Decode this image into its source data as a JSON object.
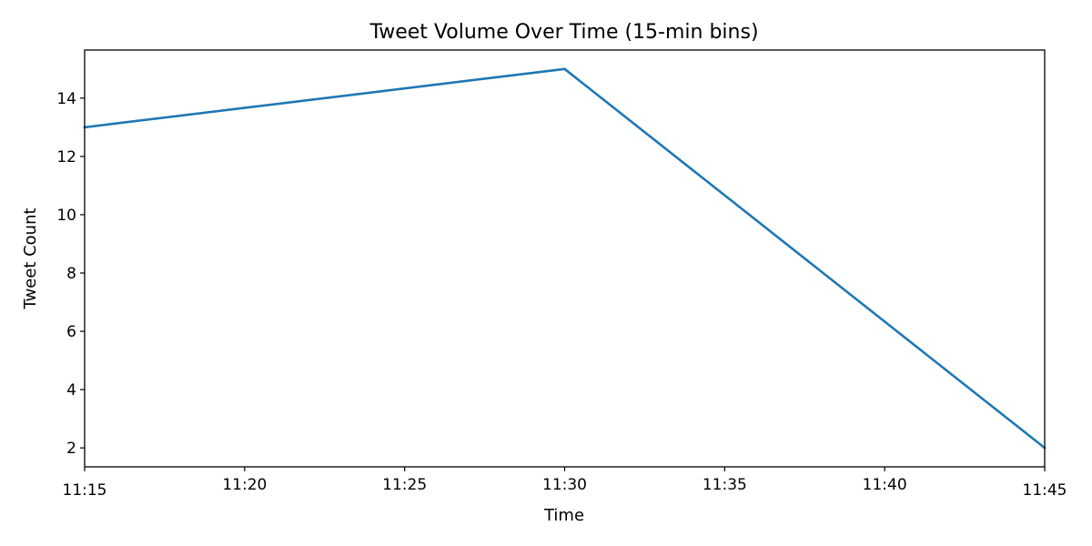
{
  "chart_data": {
    "type": "line",
    "title": "Tweet Volume Over Time (15-min bins)",
    "xlabel": "Time",
    "ylabel": "Tweet Count",
    "x": [
      "11:15",
      "11:30",
      "11:45"
    ],
    "series": [
      {
        "values": [
          13,
          15,
          2
        ],
        "color": "#1f77b4"
      }
    ],
    "x_ticks": [
      "11:15",
      "11:20",
      "11:25",
      "11:30",
      "11:35",
      "11:40",
      "11:45"
    ],
    "y_ticks": [
      2,
      4,
      6,
      8,
      10,
      12,
      14
    ],
    "xlim": [
      "11:15",
      "11:45"
    ],
    "ylim": [
      1.35,
      15.65
    ],
    "grid": false,
    "legend": "none"
  }
}
